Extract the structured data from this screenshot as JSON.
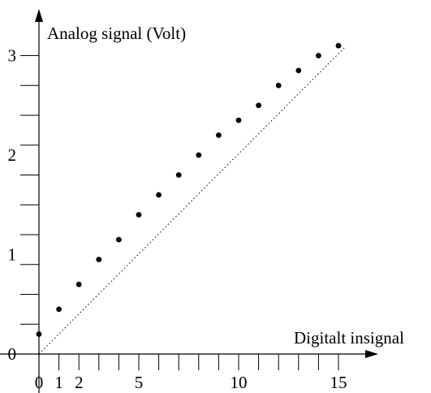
{
  "chart_data": {
    "type": "scatter",
    "title": "",
    "xlabel": "Digitalt insignal",
    "ylabel": "Analog signal (Volt)",
    "x": [
      0,
      1,
      2,
      3,
      4,
      5,
      6,
      7,
      8,
      9,
      10,
      11,
      12,
      13,
      14,
      15
    ],
    "y": [
      0.2,
      0.45,
      0.7,
      0.95,
      1.15,
      1.4,
      1.6,
      1.8,
      2.0,
      2.2,
      2.35,
      2.5,
      2.7,
      2.85,
      3.0,
      3.1
    ],
    "reference_line": {
      "style": "dotted",
      "from": [
        0,
        0
      ],
      "to": [
        15.3,
        3.08
      ]
    },
    "xlim": [
      0,
      15.3
    ],
    "ylim": [
      0,
      3
    ],
    "x_ticks": [
      0,
      1,
      2,
      3,
      4,
      5,
      6,
      7,
      8,
      9,
      10,
      11,
      12,
      13,
      14,
      15
    ],
    "x_tick_labels": [
      {
        "value": 0,
        "label": "0"
      },
      {
        "value": 1,
        "label": "1"
      },
      {
        "value": 2,
        "label": "2"
      },
      {
        "value": 5,
        "label": "5"
      },
      {
        "value": 10,
        "label": "10"
      },
      {
        "value": 15,
        "label": "15"
      }
    ],
    "y_ticks": [
      0,
      0.3,
      0.6,
      0.9,
      1.2,
      1.5,
      1.8,
      2.1,
      2.4,
      2.7,
      3.0
    ],
    "y_tick_labels": [
      {
        "value": 0,
        "label": "0"
      },
      {
        "value": 1,
        "label": "1"
      },
      {
        "value": 2,
        "label": "2"
      },
      {
        "value": 3,
        "label": "3"
      }
    ],
    "grid": false,
    "legend": "none"
  }
}
